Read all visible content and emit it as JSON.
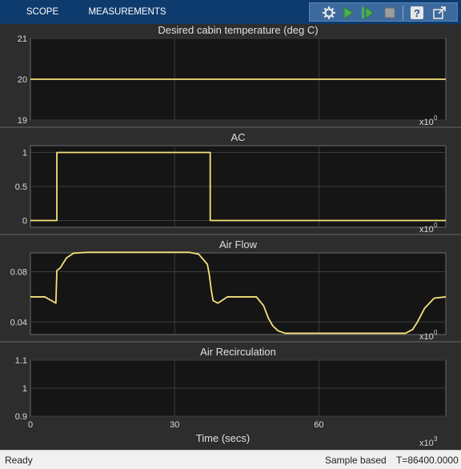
{
  "tabs": [
    {
      "label": "SCOPE"
    },
    {
      "label": "MEASUREMENTS"
    }
  ],
  "toolbar": {
    "icons": [
      "settings-gear-icon",
      "run-icon",
      "step-forward-icon",
      "stop-icon",
      "help-icon",
      "undock-icon"
    ],
    "colors": {
      "bar": "#0e3b6e",
      "strip": "#3d6a9e",
      "run": "#4caf50",
      "stop": "#9e9e9e"
    }
  },
  "status": {
    "left": "Ready",
    "mode": "Sample based",
    "time": "T=86400.0000"
  },
  "chart_data": [
    {
      "type": "line",
      "title": "Desired cabin temperature (deg C)",
      "ylim": [
        19,
        21
      ],
      "yticks": [
        "19",
        "20",
        "21"
      ],
      "xlim": [
        0,
        86.4
      ],
      "exponent_label": "x10",
      "exponent_value": "0",
      "grid": true,
      "color": "#f6e27a",
      "x": [
        0,
        86.4
      ],
      "y": [
        20,
        20
      ]
    },
    {
      "type": "line",
      "title": "AC",
      "ylim": [
        -0.1,
        1.1
      ],
      "yticks": [
        "0",
        "0.5",
        "1"
      ],
      "xlim": [
        0,
        86.4
      ],
      "exponent_label": "x10",
      "exponent_value": "0",
      "grid": true,
      "color": "#f6e27a",
      "x": [
        0,
        5.5,
        5.5,
        37.4,
        37.4,
        86.4
      ],
      "y": [
        0,
        0,
        1,
        1,
        0,
        0
      ]
    },
    {
      "type": "line",
      "title": "Air Flow",
      "ylim": [
        0.03,
        0.095
      ],
      "yticks": [
        "0.04",
        "0.08"
      ],
      "xlim": [
        0,
        86.4
      ],
      "exponent_label": "x10",
      "exponent_value": "0",
      "grid": true,
      "color": "#f6e27a",
      "x": [
        0,
        3,
        5.3,
        5.5,
        6.2,
        7.5,
        9,
        12,
        20,
        33,
        35,
        36.8,
        37.2,
        37.6,
        38,
        39,
        41,
        47,
        48.5,
        49.5,
        50.4,
        51.5,
        53,
        58,
        68,
        78,
        79.5,
        80.5,
        82,
        84,
        86.4
      ],
      "y": [
        0.06,
        0.06,
        0.055,
        0.081,
        0.083,
        0.091,
        0.0948,
        0.0955,
        0.0955,
        0.0955,
        0.094,
        0.086,
        0.078,
        0.066,
        0.057,
        0.055,
        0.06,
        0.06,
        0.053,
        0.043,
        0.037,
        0.033,
        0.031,
        0.031,
        0.031,
        0.031,
        0.034,
        0.04,
        0.051,
        0.059,
        0.06
      ]
    },
    {
      "type": "line",
      "title": "Air Recirculation",
      "ylim": [
        0.9,
        1.1
      ],
      "yticks": [
        "0.9",
        "1",
        "1.1"
      ],
      "xlim": [
        0,
        86.4
      ],
      "xticks": [
        "0",
        "30",
        "60"
      ],
      "xlabel": "Time (secs)",
      "exponent_label": "x10",
      "exponent_value": "3",
      "grid": true,
      "color": "#f6e27a",
      "x": [],
      "y": []
    }
  ]
}
